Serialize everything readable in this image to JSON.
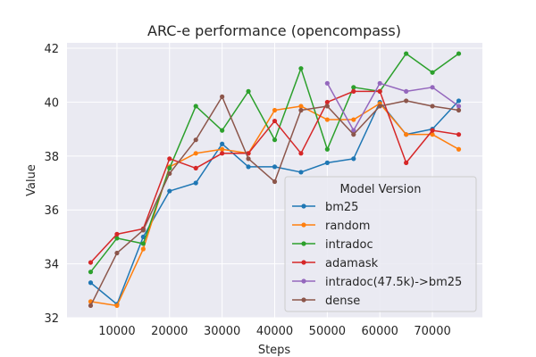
{
  "chart_data": {
    "type": "line",
    "title": "ARC-e performance (opencompass)",
    "xlabel": "Steps",
    "ylabel": "Value",
    "xlim": [
      500,
      79500
    ],
    "ylim": [
      32,
      42.2
    ],
    "x_ticks": [
      10000,
      20000,
      30000,
      40000,
      50000,
      60000,
      70000
    ],
    "x_tick_labels": [
      "10000",
      "20000",
      "30000",
      "40000",
      "50000",
      "60000",
      "70000"
    ],
    "y_ticks": [
      32,
      34,
      36,
      38,
      40,
      42
    ],
    "y_tick_labels": [
      "32",
      "34",
      "36",
      "38",
      "40",
      "42"
    ],
    "grid": true,
    "legend": {
      "title": "Model Version",
      "placement": "lower-right"
    },
    "series": [
      {
        "name": "bm25",
        "color": "#1f77b4",
        "x": [
          5000,
          10000,
          15000,
          20000,
          25000,
          30000,
          35000,
          40000,
          45000,
          50000,
          55000,
          60000,
          65000,
          70000,
          75000
        ],
        "y": [
          33.3,
          32.5,
          35.0,
          36.7,
          37.0,
          38.45,
          37.6,
          37.6,
          37.4,
          37.75,
          37.9,
          40.0,
          38.8,
          39.0,
          40.05
        ]
      },
      {
        "name": "random",
        "color": "#ff7f0e",
        "x": [
          5000,
          10000,
          15000,
          20000,
          25000,
          30000,
          35000,
          40000,
          45000,
          50000,
          55000,
          60000,
          65000,
          70000,
          75000
        ],
        "y": [
          32.6,
          32.45,
          34.55,
          37.6,
          38.1,
          38.25,
          38.1,
          39.7,
          39.85,
          39.35,
          39.35,
          39.95,
          38.8,
          38.8,
          38.25
        ]
      },
      {
        "name": "intradoc",
        "color": "#2ca02c",
        "x": [
          5000,
          10000,
          15000,
          20000,
          25000,
          30000,
          35000,
          40000,
          45000,
          50000,
          55000,
          60000,
          65000,
          70000,
          75000
        ],
        "y": [
          33.7,
          34.95,
          34.75,
          37.55,
          39.85,
          38.95,
          40.4,
          38.6,
          41.25,
          38.25,
          40.55,
          40.4,
          41.8,
          41.1,
          41.8
        ]
      },
      {
        "name": "adamask",
        "color": "#d62728",
        "x": [
          5000,
          10000,
          15000,
          20000,
          25000,
          30000,
          35000,
          40000,
          45000,
          50000,
          55000,
          60000,
          65000,
          70000,
          75000
        ],
        "y": [
          34.05,
          35.1,
          35.3,
          37.9,
          37.55,
          38.1,
          38.1,
          39.3,
          38.1,
          40.0,
          40.4,
          40.4,
          37.75,
          38.95,
          38.8
        ]
      },
      {
        "name": "intradoc(47.5k)->bm25",
        "color": "#9467bd",
        "x": [
          50000,
          55000,
          60000,
          65000,
          70000,
          75000
        ],
        "y": [
          40.7,
          38.95,
          40.7,
          40.4,
          40.55,
          39.85
        ]
      },
      {
        "name": "dense",
        "color": "#8c564b",
        "x": [
          5000,
          10000,
          15000,
          20000,
          25000,
          30000,
          35000,
          40000,
          45000,
          50000,
          55000,
          60000,
          65000,
          70000,
          75000
        ],
        "y": [
          32.45,
          34.4,
          35.25,
          37.35,
          38.6,
          40.2,
          37.9,
          37.05,
          39.7,
          39.85,
          38.8,
          39.85,
          40.05,
          39.85,
          39.7
        ]
      }
    ]
  }
}
